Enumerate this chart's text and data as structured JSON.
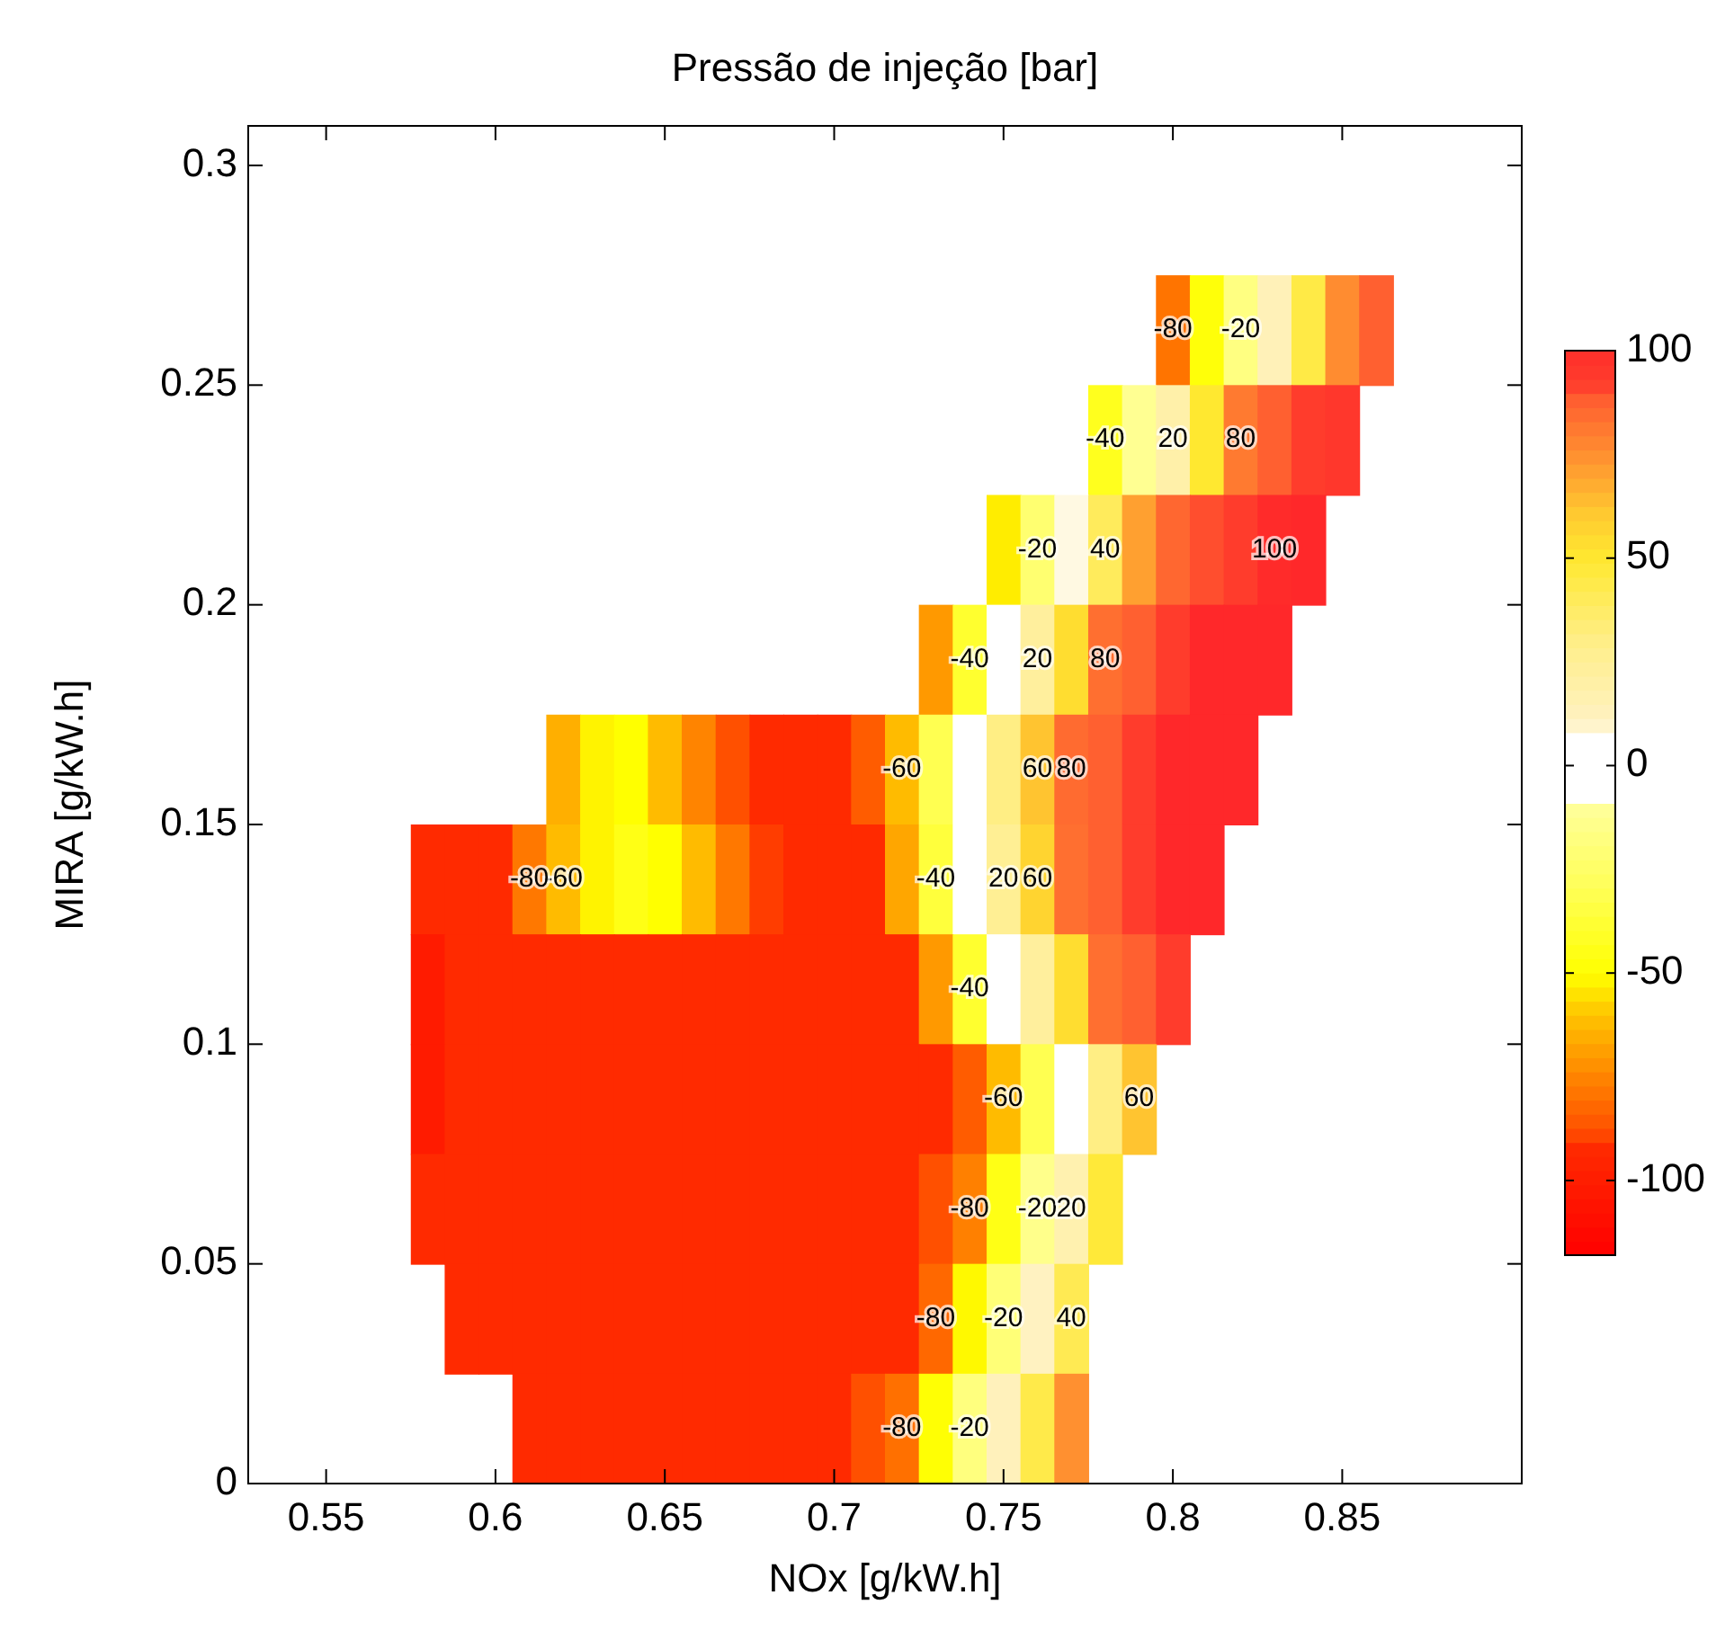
{
  "chart_data": {
    "type": "heatmap",
    "title": "Pressão de injeção [bar]",
    "xlabel": "NOx [g/kW.h]",
    "ylabel": "MIRA [g/kW.h]",
    "x": [
      0.58,
      0.59,
      0.6,
      0.61,
      0.62,
      0.63,
      0.64,
      0.65,
      0.66,
      0.67,
      0.68,
      0.69,
      0.7,
      0.71,
      0.72,
      0.73,
      0.74,
      0.75,
      0.76,
      0.77,
      0.78,
      0.79,
      0.8,
      0.81,
      0.82,
      0.83,
      0.84,
      0.85,
      0.86
    ],
    "y": [
      0.2625,
      0.2375,
      0.2125,
      0.1875,
      0.1625,
      0.1375,
      0.1125,
      0.0875,
      0.0625,
      0.0375,
      0.0125
    ],
    "cells": [
      [
        null,
        null,
        null,
        null,
        null,
        null,
        null,
        null,
        null,
        null,
        null,
        null,
        null,
        null,
        null,
        null,
        null,
        null,
        null,
        null,
        null,
        null,
        -79,
        -48,
        -17,
        14,
        45,
        76,
        88
      ],
      [
        null,
        null,
        null,
        null,
        null,
        null,
        null,
        null,
        null,
        null,
        null,
        null,
        null,
        null,
        null,
        null,
        null,
        null,
        null,
        null,
        -43,
        -12,
        19,
        50,
        81,
        88,
        92,
        95,
        null
      ],
      [
        null,
        null,
        null,
        null,
        null,
        null,
        null,
        null,
        null,
        null,
        null,
        null,
        null,
        null,
        null,
        null,
        null,
        -53,
        -22,
        9,
        40,
        71,
        86,
        90,
        92,
        103,
        105,
        null,
        null
      ],
      [
        null,
        null,
        null,
        null,
        null,
        null,
        null,
        null,
        null,
        null,
        null,
        null,
        null,
        null,
        null,
        -70,
        -39,
        -8,
        23,
        54,
        84,
        88,
        92,
        105,
        105,
        105,
        null,
        null,
        null
      ],
      [
        null,
        null,
        null,
        null,
        -65,
        -52,
        -50,
        -62,
        -75,
        -88,
        -92,
        -92,
        -92,
        -85,
        -62,
        -31,
        0,
        31,
        62,
        85,
        88,
        92,
        105,
        105,
        105,
        null,
        null,
        null,
        null
      ],
      [
        -92,
        -92,
        -92,
        -78,
        -62,
        -52,
        -45,
        -50,
        -62,
        -78,
        -90,
        -92,
        -92,
        -92,
        -67,
        -36,
        -5,
        26,
        57,
        84,
        88,
        92,
        105,
        105,
        null,
        null,
        null,
        null,
        null
      ],
      [
        -101,
        -92,
        -92,
        -92,
        -92,
        -92,
        -92,
        -92,
        -92,
        -92,
        -92,
        -92,
        -92,
        -92,
        -92,
        -70,
        -39,
        -8,
        23,
        54,
        84,
        88,
        92,
        null,
        null,
        null,
        null,
        null,
        null
      ],
      [
        -101,
        -92,
        -92,
        -92,
        -92,
        -92,
        -92,
        -92,
        -92,
        -92,
        -92,
        -92,
        -92,
        -92,
        -92,
        -92,
        -85,
        -62,
        -31,
        0,
        31,
        62,
        null,
        null,
        null,
        null,
        null,
        null,
        null
      ],
      [
        -92,
        -92,
        -92,
        -92,
        -92,
        -92,
        -92,
        -92,
        -92,
        -92,
        -92,
        -92,
        -92,
        -92,
        -92,
        -88,
        -76,
        -45,
        -14,
        17,
        48,
        null,
        null,
        null,
        null,
        null,
        null,
        null,
        null
      ],
      [
        null,
        -92,
        -92,
        -92,
        -92,
        -92,
        -92,
        -92,
        -92,
        -92,
        -92,
        -92,
        -92,
        -92,
        -92,
        -82,
        -51,
        -20,
        11,
        42,
        null,
        null,
        null,
        null,
        null,
        null,
        null,
        null,
        null
      ],
      [
        null,
        null,
        null,
        -92,
        -92,
        -92,
        -92,
        -92,
        -92,
        -92,
        -92,
        -92,
        -92,
        -88,
        -80,
        -49,
        -18,
        13,
        44,
        75,
        null,
        null,
        null,
        null,
        null,
        null,
        null,
        null,
        null
      ]
    ],
    "xlim": [
      0.527,
      0.903
    ],
    "xticks": [
      0.55,
      0.6,
      0.65,
      0.7,
      0.75,
      0.8,
      0.85
    ],
    "ylim": [
      0,
      0.309
    ],
    "yticks": [
      0,
      0.05,
      0.1,
      0.15,
      0.2,
      0.25,
      0.3
    ],
    "clim": [
      -118,
      100
    ],
    "cticks": [
      -100,
      -50,
      0,
      50,
      100
    ],
    "annotations": [
      "-60",
      "-40",
      "-60",
      "-80",
      "-80",
      "-80",
      "-40",
      "-20",
      "-60",
      "-80",
      "-80",
      "-40",
      "-20",
      "60",
      "80",
      "-40",
      "-20",
      "40",
      "-20",
      "20",
      "-20",
      "20",
      "40",
      "20",
      "60",
      "80",
      "100",
      "20",
      "60",
      "80"
    ]
  }
}
